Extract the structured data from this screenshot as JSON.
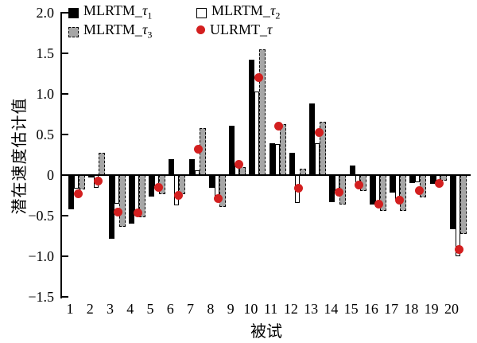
{
  "chart_data": {
    "type": "bar",
    "title": "",
    "xlabel": "被试",
    "ylabel": "潜在速度估计值",
    "ylim": [
      -1.5,
      2.0
    ],
    "grid": false,
    "legend_position": "top-left-inside",
    "yticks": [
      {
        "label": "2.0",
        "value": 2.0
      },
      {
        "label": "1.5",
        "value": 1.5
      },
      {
        "label": "1.0",
        "value": 1.0
      },
      {
        "label": "0.5",
        "value": 0.5
      },
      {
        "label": "0",
        "value": 0.0
      },
      {
        "label": "−0.5",
        "value": -0.5
      },
      {
        "label": "−1.0",
        "value": -1.0
      },
      {
        "label": "−1.5",
        "value": -1.5
      }
    ],
    "categories": [
      "1",
      "2",
      "3",
      "4",
      "5",
      "6",
      "7",
      "8",
      "9",
      "10",
      "11",
      "12",
      "13",
      "14",
      "15",
      "16",
      "17",
      "18",
      "19",
      "20"
    ],
    "series": [
      {
        "name": "MLRTM_τ1",
        "marker": "black-square",
        "color": "#000000",
        "values": [
          -0.42,
          -0.03,
          -0.78,
          -0.6,
          -0.26,
          0.2,
          0.2,
          -0.16,
          0.61,
          1.42,
          0.39,
          0.27,
          0.88,
          -0.33,
          0.12,
          -0.36,
          -0.22,
          -0.1,
          -0.11,
          -0.67
        ]
      },
      {
        "name": "MLRTM_τ2",
        "marker": "white-square",
        "color": "#ffffff",
        "values": [
          -0.17,
          -0.16,
          -0.35,
          -0.48,
          -0.14,
          -0.37,
          0.06,
          -0.27,
          0.14,
          1.03,
          0.38,
          -0.34,
          0.39,
          -0.2,
          -0.14,
          -0.39,
          -0.3,
          -0.09,
          -0.09,
          -1.0
        ]
      },
      {
        "name": "MLRTM_τ3",
        "marker": "gray-dashed-square",
        "color": "#a6a6a6",
        "values": [
          -0.18,
          0.27,
          -0.64,
          -0.52,
          -0.24,
          -0.24,
          0.58,
          -0.39,
          0.1,
          1.55,
          0.63,
          0.08,
          0.66,
          -0.36,
          -0.2,
          -0.44,
          -0.44,
          -0.27,
          -0.07,
          -0.73
        ]
      },
      {
        "name": "ULRMT_τ",
        "marker": "red-circle",
        "color": "#d31f1f",
        "values": [
          -0.23,
          -0.07,
          -0.46,
          -0.47,
          -0.15,
          -0.25,
          0.32,
          -0.29,
          0.13,
          1.2,
          0.6,
          -0.16,
          0.52,
          -0.21,
          -0.12,
          -0.36,
          -0.31,
          -0.19,
          -0.1,
          -0.92
        ]
      }
    ],
    "legend": [
      {
        "marker": "black-square",
        "prefix": "MLRTM_",
        "symbol": "τ",
        "subscript": "1"
      },
      {
        "marker": "white-square",
        "prefix": "MLRTM_",
        "symbol": "τ",
        "subscript": "2"
      },
      {
        "marker": "gray-dashed-square",
        "prefix": "MLRTM_",
        "symbol": "τ",
        "subscript": "3"
      },
      {
        "marker": "red-circle",
        "prefix": "ULRMT_",
        "symbol": "τ",
        "subscript": ""
      }
    ]
  }
}
